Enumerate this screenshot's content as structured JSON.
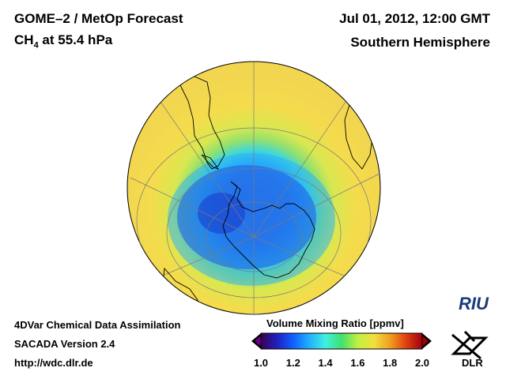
{
  "header": {
    "title_left_line1": "GOME–2 / MetOp Forecast",
    "title_left_line2_main": "CH",
    "title_left_line2_sub": "4",
    "title_left_line2_rest": " at 55.4 hPa",
    "title_right_line1": "Jul 01, 2012, 12:00 GMT",
    "title_right_line2": "Southern Hemisphere"
  },
  "footer": {
    "line1": "4DVar Chemical Data Assimilation",
    "line2": "SACADA Version 2.4",
    "line3": "http://wdc.dlr.de"
  },
  "colorbar": {
    "title": "Volume Mixing Ratio [ppmv]",
    "ticks": [
      "1.0",
      "1.2",
      "1.4",
      "1.6",
      "1.8",
      "2.0"
    ],
    "colors": [
      "#3a0050",
      "#2020c0",
      "#1060ff",
      "#20b0ff",
      "#40f0e0",
      "#40e070",
      "#c0f040",
      "#f0e040",
      "#f0a020",
      "#e04010",
      "#a00010"
    ]
  },
  "logos": {
    "riu": "RIU",
    "dlr": "DLR"
  },
  "map": {
    "projection": "orthographic-south-polar",
    "colors": {
      "background": "#f0d850",
      "ring_outer": "#e8e050",
      "ring_mid": "#a0e060",
      "ring_inner": "#40d0d0",
      "vortex_edge": "#30a0f0",
      "vortex_core": "#2050e0",
      "coast": "#000000",
      "grid": "#808080"
    }
  }
}
